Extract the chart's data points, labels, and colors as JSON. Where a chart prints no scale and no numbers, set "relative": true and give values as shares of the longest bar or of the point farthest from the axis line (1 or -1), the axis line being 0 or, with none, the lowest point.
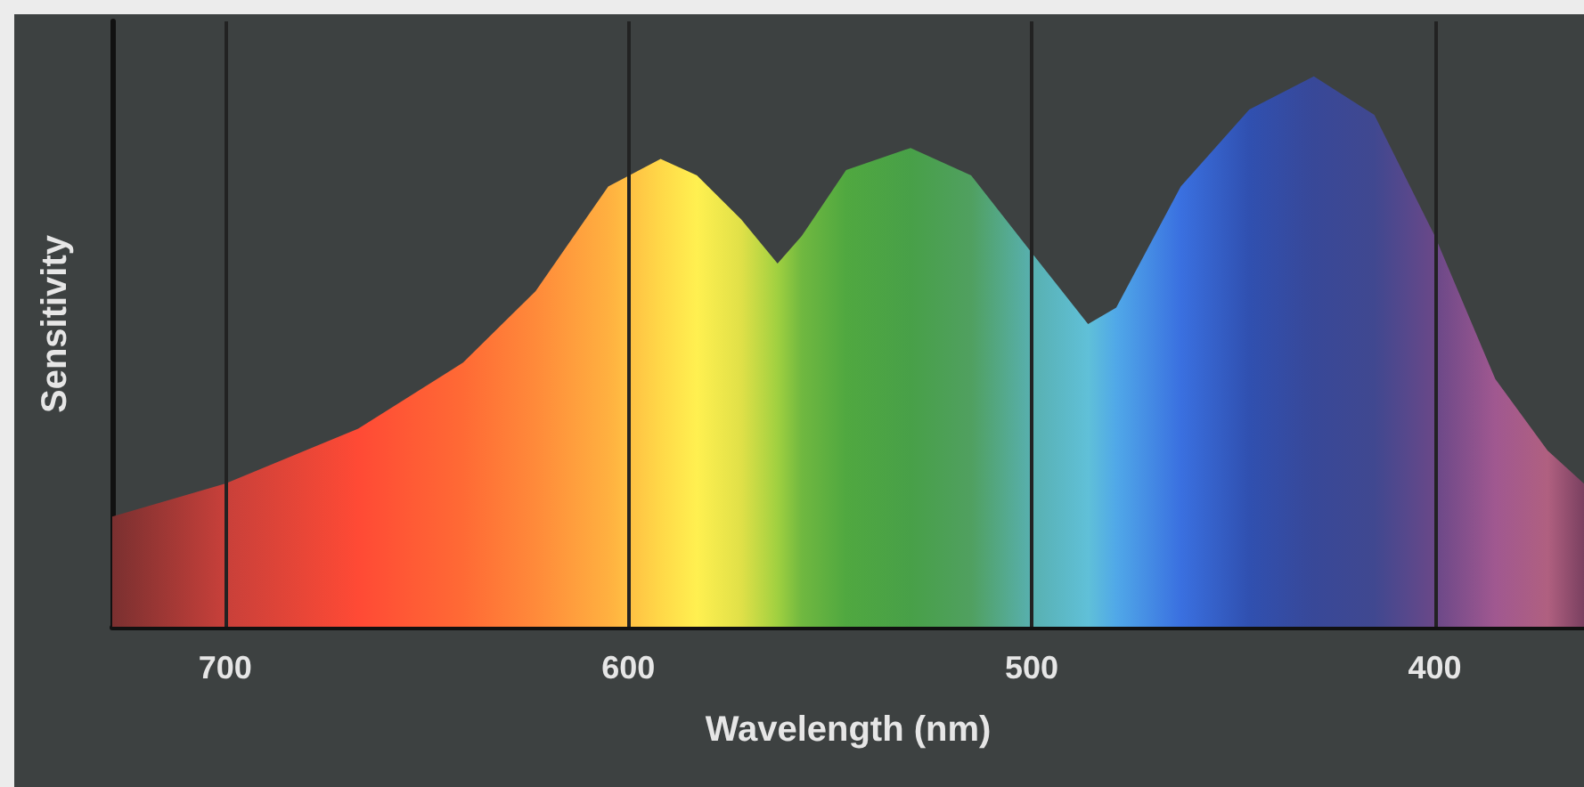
{
  "chart_data": {
    "type": "area",
    "relative": true,
    "xlabel": "Wavelength (nm)",
    "ylabel": "Sensitivity",
    "xlim": [
      728,
      363
    ],
    "xticks": [
      700,
      {
        "value": 650,
        "label": null
      },
      600,
      {
        "value": 550,
        "label": null
      },
      500,
      {
        "value": 450,
        "label": null
      },
      400
    ],
    "grid": "x",
    "series": [
      {
        "x": [
          728,
          700,
          667,
          641,
          623,
          605,
          592,
          583,
          572,
          563,
          557,
          546,
          530,
          515,
          500,
          486,
          479,
          463,
          446,
          430,
          415,
          400,
          385,
          372,
          363
        ],
        "values": [
          0.2,
          0.26,
          0.36,
          0.48,
          0.61,
          0.8,
          0.85,
          0.82,
          0.74,
          0.66,
          0.71,
          0.83,
          0.87,
          0.82,
          0.68,
          0.55,
          0.58,
          0.8,
          0.94,
          1,
          0.93,
          0.71,
          0.45,
          0.32,
          0.26
        ],
        "colors": [
          "#7a3030",
          "#c8403a",
          "#ff4a35",
          "#ff6a35",
          "#ff8a3a",
          "#ffb040",
          "#ffd848",
          "#fff050",
          "#e0e048",
          "#a0d040",
          "#70b840",
          "#50a840",
          "#48a048",
          "#50a060",
          "#58b0b0",
          "#60c0d8",
          "#50a8e8",
          "#3a70e0",
          "#3050b0",
          "#384898",
          "#404890",
          "#6a4888",
          "#a05890",
          "#b06080",
          "#7a4060"
        ]
      }
    ]
  }
}
